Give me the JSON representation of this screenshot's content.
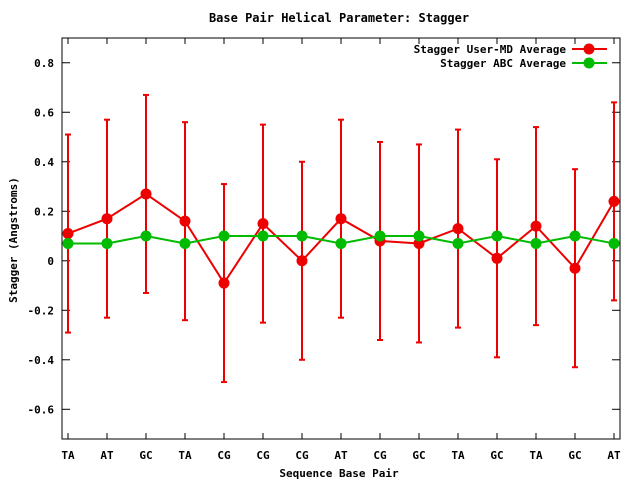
{
  "chart_data": {
    "type": "line",
    "title": "Base Pair Helical Parameter: Stagger",
    "xlabel": "Sequence Base Pair",
    "ylabel": "Stagger (Angstroms)",
    "categories": [
      "TA",
      "AT",
      "GC",
      "TA",
      "CG",
      "CG",
      "CG",
      "AT",
      "CG",
      "GC",
      "TA",
      "GC",
      "TA",
      "GC",
      "AT"
    ],
    "ylim": [
      -0.72,
      0.9
    ],
    "yticks": [
      -0.6,
      -0.4,
      -0.2,
      0,
      0.2,
      0.4,
      0.6,
      0.8
    ],
    "ytick_labels": [
      "-0.6",
      "-0.4",
      "-0.2",
      "0",
      "0.2",
      "0.4",
      "0.6",
      "0.8"
    ],
    "legend_position": "top-right",
    "grid": false,
    "series": [
      {
        "name": "Stagger User-MD Average",
        "color": "#ee0000",
        "values": [
          0.11,
          0.17,
          0.27,
          0.16,
          -0.09,
          0.15,
          0.0,
          0.17,
          0.08,
          0.07,
          0.13,
          0.01,
          0.14,
          -0.03,
          0.24
        ],
        "error": [
          0.4,
          0.4,
          0.4,
          0.4,
          0.4,
          0.4,
          0.4,
          0.4,
          0.4,
          0.4,
          0.4,
          0.4,
          0.4,
          0.4,
          0.4
        ]
      },
      {
        "name": "Stagger ABC Average",
        "color": "#00bb00",
        "values": [
          0.07,
          0.07,
          0.1,
          0.07,
          0.1,
          0.1,
          0.1,
          0.07,
          0.1,
          0.1,
          0.07,
          0.1,
          0.07,
          0.1,
          0.07
        ]
      }
    ]
  }
}
